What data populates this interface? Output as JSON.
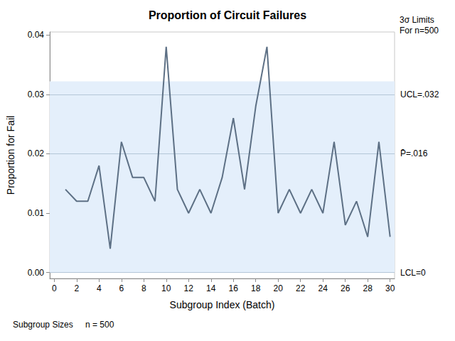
{
  "chart_data": {
    "type": "line",
    "title": "Proportion of Circuit Failures",
    "x_label": "Subgroup Index (Batch)",
    "y_label": "Proportion for Fail",
    "x": [
      1,
      2,
      3,
      4,
      5,
      6,
      7,
      8,
      9,
      10,
      11,
      12,
      13,
      14,
      15,
      16,
      17,
      18,
      19,
      20,
      21,
      22,
      23,
      24,
      25,
      26,
      27,
      28,
      29,
      30
    ],
    "values": [
      0.014,
      0.012,
      0.012,
      0.018,
      0.004,
      0.022,
      0.016,
      0.016,
      0.012,
      0.038,
      0.014,
      0.01,
      0.014,
      0.01,
      0.016,
      0.026,
      0.014,
      0.028,
      0.038,
      0.01,
      0.014,
      0.01,
      0.014,
      0.01,
      0.022,
      0.008,
      0.012,
      0.006,
      0.022,
      0.006
    ],
    "color": "#5d7085",
    "marker": "none",
    "line_style": "solid",
    "grid": false,
    "xlim": [
      -0.4,
      30.4
    ],
    "xticks": [
      0,
      2,
      4,
      6,
      8,
      10,
      12,
      14,
      16,
      18,
      20,
      22,
      24,
      26,
      28,
      30
    ],
    "ylim": [
      -0.001,
      0.0405
    ],
    "yticks": [
      {
        "value": 0,
        "label": "0.00"
      },
      {
        "value": 0.01,
        "label": "0.01"
      },
      {
        "value": 0.02,
        "label": "0.02"
      },
      {
        "value": 0.03,
        "label": "0.03"
      },
      {
        "value": 0.04,
        "label": "0.04"
      }
    ],
    "control_limits": [
      {
        "value": 0.0322,
        "label": "UCL=.032"
      },
      {
        "value": 0.0156,
        "label": "P̄=.016"
      },
      {
        "value": 0,
        "label": "LCL=0"
      }
    ],
    "limits_note": [
      "3σ Limits",
      "For n=500"
    ],
    "subgroup_sizes": {
      "label": "Subgroup Sizes",
      "text": "n = 500"
    }
  }
}
